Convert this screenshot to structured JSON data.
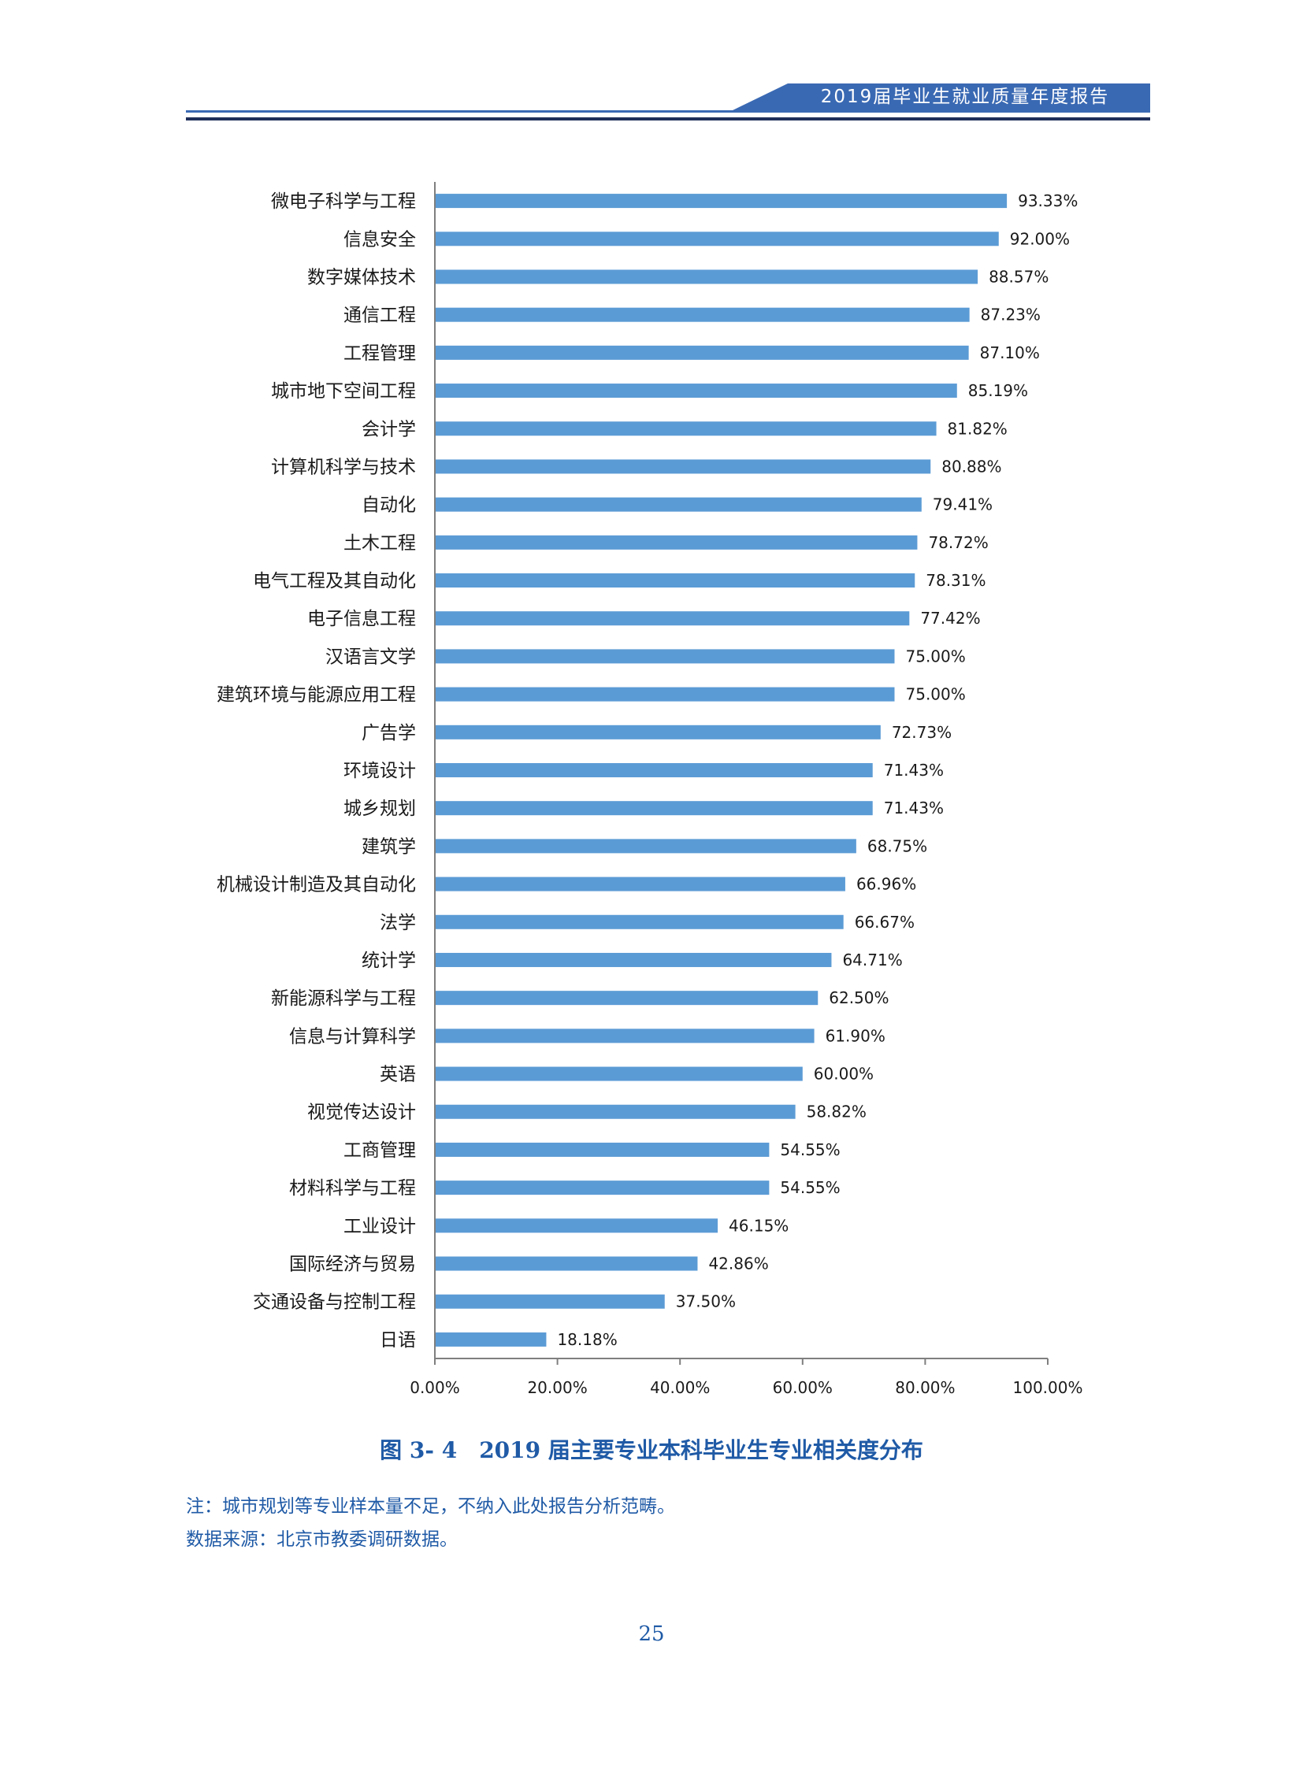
{
  "header": {
    "title": "2019届毕业生就业质量年度报告"
  },
  "chart_data": {
    "type": "bar",
    "orientation": "horizontal",
    "categories": [
      "微电子科学与工程",
      "信息安全",
      "数字媒体技术",
      "通信工程",
      "工程管理",
      "城市地下空间工程",
      "会计学",
      "计算机科学与技术",
      "自动化",
      "土木工程",
      "电气工程及其自动化",
      "电子信息工程",
      "汉语言文学",
      "建筑环境与能源应用工程",
      "广告学",
      "环境设计",
      "城乡规划",
      "建筑学",
      "机械设计制造及其自动化",
      "法学",
      "统计学",
      "新能源科学与工程",
      "信息与计算科学",
      "英语",
      "视觉传达设计",
      "工商管理",
      "材料科学与工程",
      "工业设计",
      "国际经济与贸易",
      "交通设备与控制工程",
      "日语"
    ],
    "values": [
      93.33,
      92.0,
      88.57,
      87.23,
      87.1,
      85.19,
      81.82,
      80.88,
      79.41,
      78.72,
      78.31,
      77.42,
      75.0,
      75.0,
      72.73,
      71.43,
      71.43,
      68.75,
      66.96,
      66.67,
      64.71,
      62.5,
      61.9,
      60.0,
      58.82,
      54.55,
      54.55,
      46.15,
      42.86,
      37.5,
      18.18
    ],
    "value_labels": [
      "93.33%",
      "92.00%",
      "88.57%",
      "87.23%",
      "87.10%",
      "85.19%",
      "81.82%",
      "80.88%",
      "79.41%",
      "78.72%",
      "78.31%",
      "77.42%",
      "75.00%",
      "75.00%",
      "72.73%",
      "71.43%",
      "71.43%",
      "68.75%",
      "66.96%",
      "66.67%",
      "64.71%",
      "62.50%",
      "61.90%",
      "60.00%",
      "58.82%",
      "54.55%",
      "54.55%",
      "46.15%",
      "42.86%",
      "37.50%",
      "18.18%"
    ],
    "xlim": [
      0,
      100
    ],
    "xticks": [
      "0.00%",
      "20.00%",
      "40.00%",
      "60.00%",
      "80.00%",
      "100.00%"
    ],
    "grid": false,
    "bar_color": "#5b9bd5"
  },
  "caption": "图 3- 4　2019 届主要专业本科毕业生专业相关度分布",
  "notes": [
    "注：城市规划等专业样本量不足，不纳入此处报告分析范畴。",
    "数据来源：北京市教委调研数据。"
  ],
  "page_number": "25"
}
